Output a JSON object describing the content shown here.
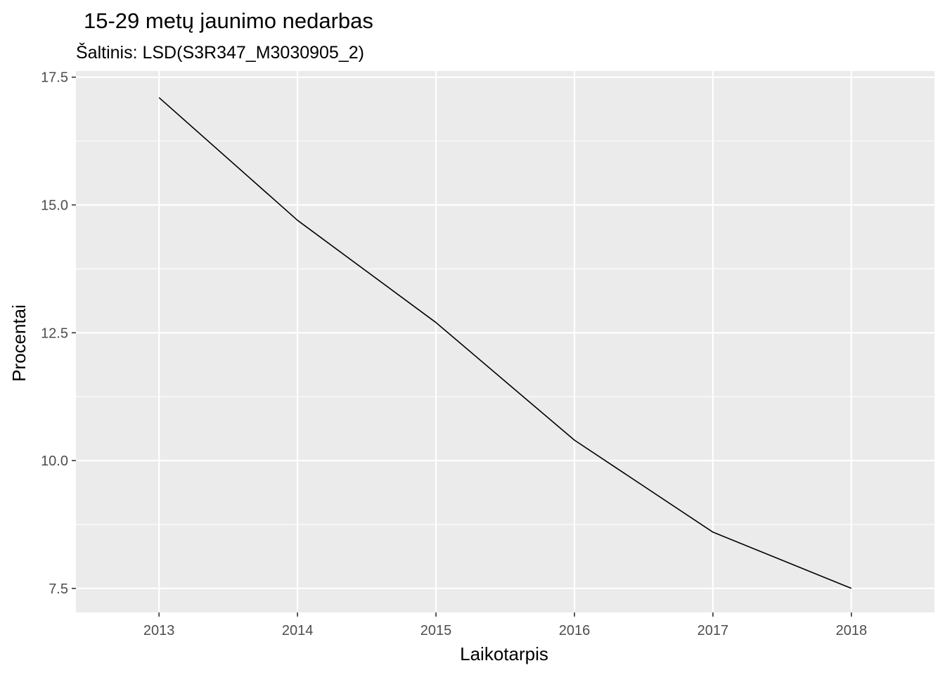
{
  "chart_data": {
    "type": "line",
    "title": "15-29 metų jaunimo nedarbas",
    "subtitle": "Šaltinis: LSD(S3R347_M3030905_2)",
    "xlabel": "Laikotarpis",
    "ylabel": "Procentai",
    "x": [
      2013,
      2014,
      2015,
      2016,
      2017,
      2018
    ],
    "x_tick_labels": [
      "2013",
      "2014",
      "2015",
      "2016",
      "2017",
      "2018"
    ],
    "y_ticks": [
      7.5,
      10.0,
      12.5,
      15.0,
      17.5
    ],
    "y_tick_labels": [
      "7.5",
      "10.0",
      "12.5",
      "15.0",
      "17.5"
    ],
    "xlim": [
      2012.4,
      2018.6
    ],
    "ylim": [
      7.03,
      17.62
    ],
    "series": [
      {
        "values": [
          17.1,
          14.7,
          12.7,
          10.4,
          8.6,
          7.5
        ]
      }
    ],
    "grid": true,
    "legend": "none",
    "colors": {
      "panel": "#ebebeb",
      "grid": "#ffffff",
      "line": "#000000",
      "tick_text": "#4d4d4d"
    }
  }
}
